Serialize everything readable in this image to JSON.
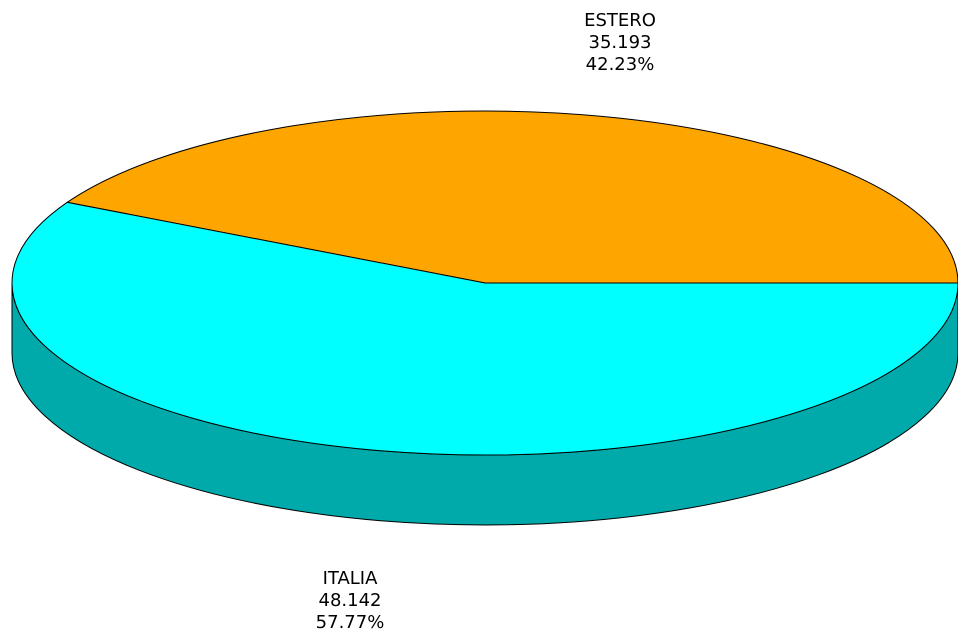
{
  "chart_data": {
    "type": "pie",
    "style": "3d",
    "slices": [
      {
        "label": "ESTERO",
        "value": 35.193,
        "percent": "42.23%",
        "value_text": "35.193",
        "color": "#FFA500"
      },
      {
        "label": "ITALIA",
        "value": 48.142,
        "percent": "57.77%",
        "value_text": "48.142",
        "color": "#00FFFF"
      }
    ],
    "side_color": "#00AAAA",
    "outline_color": "#000000"
  }
}
